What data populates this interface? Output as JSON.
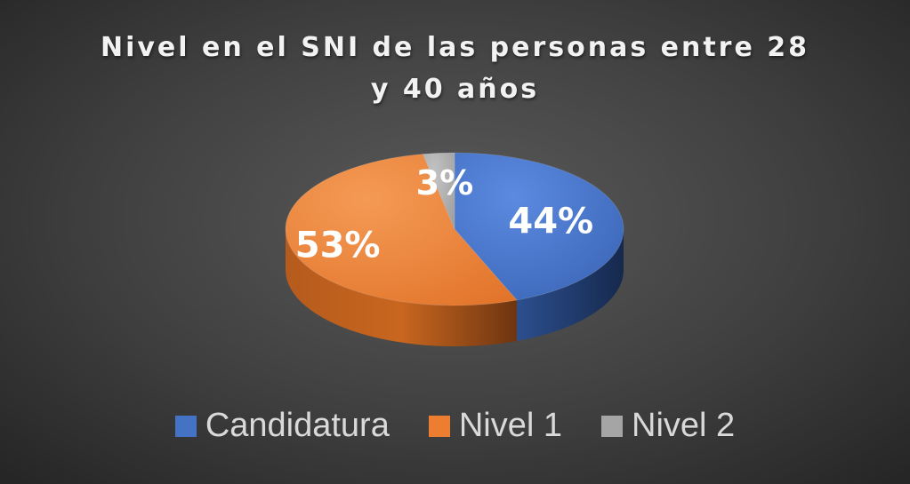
{
  "chart_data": {
    "type": "pie",
    "title_lines": [
      "Nivel en el SNI de las personas entre 28",
      "y 40 años"
    ],
    "categories": [
      "Candidatura",
      "Nivel 1",
      "Nivel 2"
    ],
    "values": [
      44,
      53,
      3
    ],
    "data_labels": [
      "44%",
      "53%",
      "3%"
    ],
    "colors": [
      "#4472C4",
      "#ED7D31",
      "#A5A5A5"
    ],
    "legend_position": "bottom",
    "style": "3d"
  }
}
